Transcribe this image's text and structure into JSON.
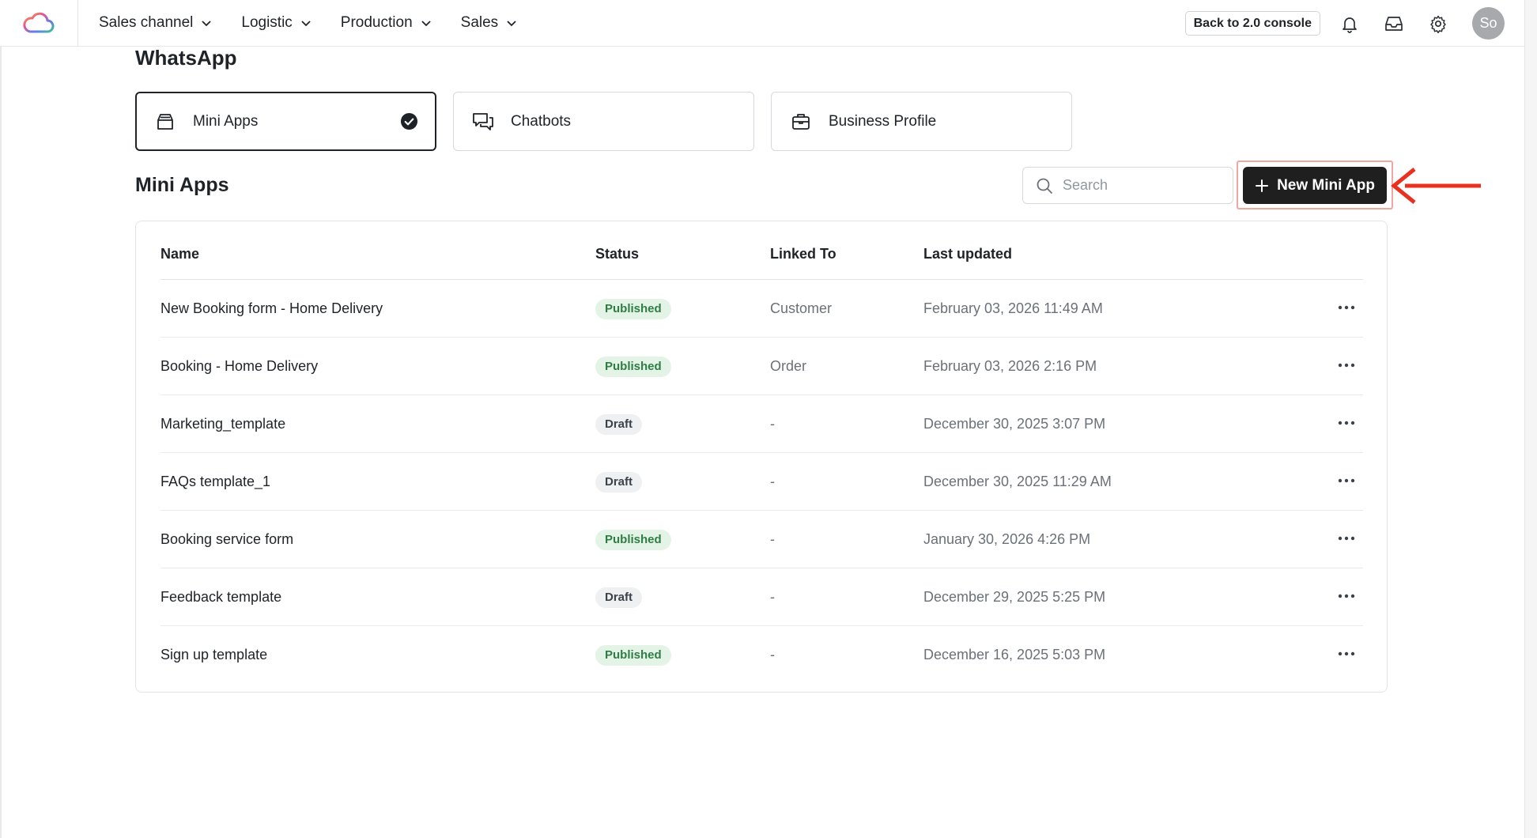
{
  "nav": {
    "items": [
      {
        "label": "Sales channel"
      },
      {
        "label": "Logistic"
      },
      {
        "label": "Production"
      },
      {
        "label": "Sales"
      }
    ],
    "back_label": "Back to 2.0 console",
    "avatar_initials": "So"
  },
  "page": {
    "title": "WhatsApp",
    "tabs": [
      {
        "label": "Mini Apps",
        "selected": true,
        "icon": "inbox-tray-icon"
      },
      {
        "label": "Chatbots",
        "selected": false,
        "icon": "chat-bubbles-icon"
      },
      {
        "label": "Business Profile",
        "selected": false,
        "icon": "briefcase-icon"
      }
    ]
  },
  "section": {
    "title": "Mini Apps",
    "search_placeholder": "Search",
    "new_button_label": "New Mini App"
  },
  "table": {
    "columns": [
      "Name",
      "Status",
      "Linked To",
      "Last updated"
    ],
    "rows": [
      {
        "name": "New Booking form - Home Delivery",
        "status": "Published",
        "linked_to": "Customer",
        "last_updated": "February 03, 2026 11:49 AM"
      },
      {
        "name": "Booking - Home Delivery",
        "status": "Published",
        "linked_to": "Order",
        "last_updated": "February 03, 2026 2:16 PM"
      },
      {
        "name": "Marketing_template",
        "status": "Draft",
        "linked_to": "-",
        "last_updated": "December 30, 2025 3:07 PM"
      },
      {
        "name": "FAQs template_1",
        "status": "Draft",
        "linked_to": "-",
        "last_updated": "December 30, 2025 11:29 AM"
      },
      {
        "name": "Booking service form",
        "status": "Published",
        "linked_to": "-",
        "last_updated": "January 30, 2026 4:26 PM"
      },
      {
        "name": "Feedback template",
        "status": "Draft",
        "linked_to": "-",
        "last_updated": "December 29, 2025 5:25 PM"
      },
      {
        "name": "Sign up template",
        "status": "Published",
        "linked_to": "-",
        "last_updated": "December 16, 2025 5:03 PM"
      }
    ]
  },
  "colors": {
    "primary_button": "#1f1f1f",
    "published_bg": "#e3f4e7",
    "published_text": "#2f7d45",
    "draft_bg": "#eef0f2",
    "highlight_border": "#f2a6a3",
    "arrow": "#e8321f"
  }
}
